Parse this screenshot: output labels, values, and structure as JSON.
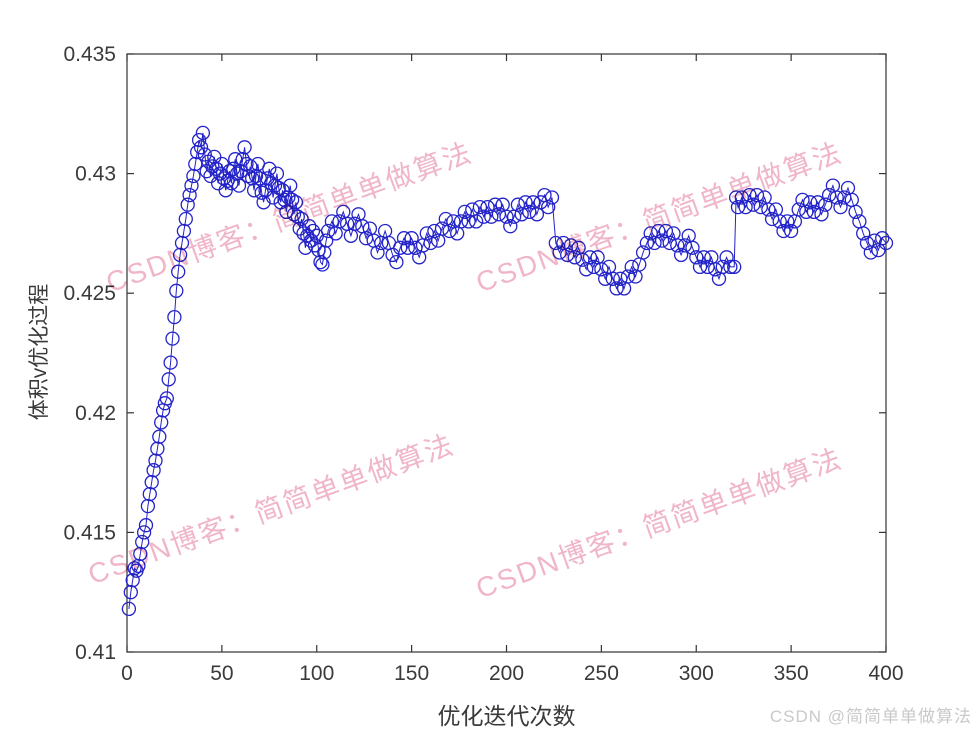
{
  "figure": {
    "xlabel": "优化迭代次数",
    "ylabel": "体积v优化过程"
  },
  "watermarks": {
    "tile_text": "CSDN博客：简简单单做算法",
    "tile_color": "#eea8c0",
    "credit_text": "CSDN @简简单单做算法",
    "credit_color": "#c9c9c9"
  },
  "chart_data": {
    "type": "line",
    "title": "",
    "xlabel": "优化迭代次数",
    "ylabel": "体积v优化过程",
    "xlim": [
      0,
      400
    ],
    "ylim": [
      0.41,
      0.435
    ],
    "xticks": [
      0,
      50,
      100,
      150,
      200,
      250,
      300,
      350,
      400
    ],
    "yticks": [
      0.41,
      0.415,
      0.42,
      0.425,
      0.43,
      0.435
    ],
    "ytick_labels": [
      "0.41",
      "0.415",
      "0.42",
      "0.425",
      "0.43",
      "0.435"
    ],
    "grid": false,
    "legend": null,
    "marker": "circle",
    "marker_radius": 6.5,
    "line_color": "#2323c9",
    "axis_color": "#333333",
    "series": [
      {
        "name": "体积v",
        "points": [
          [
            1,
            0.4118
          ],
          [
            2,
            0.4125
          ],
          [
            3,
            0.413
          ],
          [
            4,
            0.4135
          ],
          [
            5,
            0.4134
          ],
          [
            6,
            0.4136
          ],
          [
            7,
            0.4141
          ],
          [
            8,
            0.4146
          ],
          [
            9,
            0.415
          ],
          [
            10,
            0.4153
          ],
          [
            11,
            0.4161
          ],
          [
            12,
            0.4166
          ],
          [
            13,
            0.4171
          ],
          [
            14,
            0.4176
          ],
          [
            15,
            0.418
          ],
          [
            16,
            0.4185
          ],
          [
            17,
            0.419
          ],
          [
            18,
            0.4196
          ],
          [
            19,
            0.4201
          ],
          [
            20,
            0.4204
          ],
          [
            21,
            0.4206
          ],
          [
            22,
            0.4214
          ],
          [
            23,
            0.4221
          ],
          [
            24,
            0.4231
          ],
          [
            25,
            0.424
          ],
          [
            26,
            0.4251
          ],
          [
            27,
            0.4259
          ],
          [
            28,
            0.4266
          ],
          [
            29,
            0.4271
          ],
          [
            30,
            0.4276
          ],
          [
            31,
            0.4281
          ],
          [
            32,
            0.4287
          ],
          [
            33,
            0.4291
          ],
          [
            34,
            0.4295
          ],
          [
            35,
            0.4299
          ],
          [
            36,
            0.4304
          ],
          [
            37,
            0.4309
          ],
          [
            38,
            0.4314
          ],
          [
            39,
            0.4311
          ],
          [
            40,
            0.4317
          ],
          [
            41,
            0.4308
          ],
          [
            42,
            0.4301
          ],
          [
            43,
            0.4305
          ],
          [
            44,
            0.4299
          ],
          [
            45,
            0.4303
          ],
          [
            46,
            0.4307
          ],
          [
            47,
            0.4302
          ],
          [
            48,
            0.4296
          ],
          [
            49,
            0.43
          ],
          [
            50,
            0.4304
          ],
          [
            51,
            0.4298
          ],
          [
            52,
            0.4293
          ],
          [
            53,
            0.4297
          ],
          [
            54,
            0.4301
          ],
          [
            55,
            0.4296
          ],
          [
            56,
            0.4302
          ],
          [
            57,
            0.4306
          ],
          [
            58,
            0.43
          ],
          [
            59,
            0.4295
          ],
          [
            60,
            0.4301
          ],
          [
            61,
            0.4306
          ],
          [
            62,
            0.4311
          ],
          [
            63,
            0.4304
          ],
          [
            64,
            0.4299
          ],
          [
            65,
            0.4303
          ],
          [
            66,
            0.4298
          ],
          [
            67,
            0.4293
          ],
          [
            68,
            0.4299
          ],
          [
            69,
            0.4304
          ],
          [
            70,
            0.4298
          ],
          [
            71,
            0.4292
          ],
          [
            72,
            0.4288
          ],
          [
            73,
            0.4293
          ],
          [
            74,
            0.4298
          ],
          [
            75,
            0.4302
          ],
          [
            76,
            0.4296
          ],
          [
            77,
            0.429
          ],
          [
            78,
            0.4295
          ],
          [
            79,
            0.43
          ],
          [
            80,
            0.4294
          ],
          [
            81,
            0.4288
          ],
          [
            82,
            0.4293
          ],
          [
            83,
            0.4289
          ],
          [
            84,
            0.4284
          ],
          [
            85,
            0.429
          ],
          [
            86,
            0.4295
          ],
          [
            87,
            0.4289
          ],
          [
            88,
            0.4283
          ],
          [
            89,
            0.4288
          ],
          [
            90,
            0.4282
          ],
          [
            91,
            0.4277
          ],
          [
            92,
            0.4281
          ],
          [
            93,
            0.4275
          ],
          [
            94,
            0.4269
          ],
          [
            95,
            0.4274
          ],
          [
            96,
            0.4278
          ],
          [
            97,
            0.4272
          ],
          [
            98,
            0.4276
          ],
          [
            99,
            0.427
          ],
          [
            100,
            0.4274
          ],
          [
            101,
            0.4268
          ],
          [
            102,
            0.4263
          ],
          [
            103,
            0.4262
          ],
          [
            104,
            0.4267
          ],
          [
            105,
            0.4272
          ],
          [
            106,
            0.4276
          ],
          [
            108,
            0.428
          ],
          [
            110,
            0.4275
          ],
          [
            112,
            0.428
          ],
          [
            114,
            0.4284
          ],
          [
            116,
            0.4279
          ],
          [
            118,
            0.4274
          ],
          [
            120,
            0.4279
          ],
          [
            122,
            0.4283
          ],
          [
            124,
            0.4278
          ],
          [
            126,
            0.4273
          ],
          [
            128,
            0.4277
          ],
          [
            130,
            0.4272
          ],
          [
            132,
            0.4267
          ],
          [
            134,
            0.4271
          ],
          [
            136,
            0.4276
          ],
          [
            138,
            0.4271
          ],
          [
            140,
            0.4266
          ],
          [
            142,
            0.4263
          ],
          [
            144,
            0.4269
          ],
          [
            146,
            0.4273
          ],
          [
            148,
            0.4269
          ],
          [
            150,
            0.4273
          ],
          [
            152,
            0.4269
          ],
          [
            154,
            0.4265
          ],
          [
            156,
            0.427
          ],
          [
            158,
            0.4275
          ],
          [
            160,
            0.4271
          ],
          [
            162,
            0.4276
          ],
          [
            164,
            0.4272
          ],
          [
            166,
            0.4277
          ],
          [
            168,
            0.4281
          ],
          [
            170,
            0.4276
          ],
          [
            172,
            0.428
          ],
          [
            174,
            0.4275
          ],
          [
            176,
            0.428
          ],
          [
            178,
            0.4284
          ],
          [
            180,
            0.428
          ],
          [
            182,
            0.4285
          ],
          [
            184,
            0.428
          ],
          [
            186,
            0.4286
          ],
          [
            188,
            0.4282
          ],
          [
            190,
            0.4286
          ],
          [
            192,
            0.4282
          ],
          [
            194,
            0.4287
          ],
          [
            196,
            0.4283
          ],
          [
            198,
            0.4287
          ],
          [
            200,
            0.4282
          ],
          [
            202,
            0.4278
          ],
          [
            204,
            0.4282
          ],
          [
            206,
            0.4287
          ],
          [
            208,
            0.4283
          ],
          [
            210,
            0.4288
          ],
          [
            212,
            0.4284
          ],
          [
            214,
            0.4288
          ],
          [
            216,
            0.4283
          ],
          [
            218,
            0.4288
          ],
          [
            220,
            0.4291
          ],
          [
            222,
            0.4286
          ],
          [
            224,
            0.429
          ],
          [
            226,
            0.4271
          ],
          [
            228,
            0.4267
          ],
          [
            230,
            0.4271
          ],
          [
            232,
            0.4266
          ],
          [
            234,
            0.427
          ],
          [
            236,
            0.4265
          ],
          [
            238,
            0.4269
          ],
          [
            240,
            0.4264
          ],
          [
            242,
            0.426
          ],
          [
            244,
            0.4265
          ],
          [
            246,
            0.4261
          ],
          [
            248,
            0.4265
          ],
          [
            250,
            0.426
          ],
          [
            252,
            0.4256
          ],
          [
            254,
            0.4261
          ],
          [
            256,
            0.4256
          ],
          [
            258,
            0.4252
          ],
          [
            260,
            0.4256
          ],
          [
            262,
            0.4252
          ],
          [
            264,
            0.4257
          ],
          [
            266,
            0.4261
          ],
          [
            268,
            0.4257
          ],
          [
            270,
            0.4262
          ],
          [
            272,
            0.4267
          ],
          [
            274,
            0.4271
          ],
          [
            276,
            0.4275
          ],
          [
            278,
            0.4271
          ],
          [
            280,
            0.4276
          ],
          [
            282,
            0.4272
          ],
          [
            284,
            0.4276
          ],
          [
            286,
            0.4271
          ],
          [
            288,
            0.4275
          ],
          [
            290,
            0.427
          ],
          [
            292,
            0.4266
          ],
          [
            294,
            0.427
          ],
          [
            296,
            0.4274
          ],
          [
            298,
            0.4269
          ],
          [
            300,
            0.4265
          ],
          [
            302,
            0.4261
          ],
          [
            304,
            0.4265
          ],
          [
            306,
            0.4261
          ],
          [
            308,
            0.4265
          ],
          [
            310,
            0.426
          ],
          [
            312,
            0.4256
          ],
          [
            314,
            0.4261
          ],
          [
            316,
            0.4265
          ],
          [
            318,
            0.4261
          ],
          [
            320,
            0.4261
          ],
          [
            321,
            0.429
          ],
          [
            322,
            0.4286
          ],
          [
            324,
            0.429
          ],
          [
            326,
            0.4286
          ],
          [
            328,
            0.4291
          ],
          [
            330,
            0.4287
          ],
          [
            332,
            0.4291
          ],
          [
            334,
            0.4286
          ],
          [
            336,
            0.429
          ],
          [
            338,
            0.4285
          ],
          [
            340,
            0.4281
          ],
          [
            342,
            0.4285
          ],
          [
            344,
            0.428
          ],
          [
            346,
            0.4276
          ],
          [
            348,
            0.428
          ],
          [
            350,
            0.4276
          ],
          [
            352,
            0.428
          ],
          [
            354,
            0.4285
          ],
          [
            356,
            0.4289
          ],
          [
            358,
            0.4284
          ],
          [
            360,
            0.4288
          ],
          [
            362,
            0.4284
          ],
          [
            364,
            0.4288
          ],
          [
            366,
            0.4283
          ],
          [
            368,
            0.4287
          ],
          [
            370,
            0.4291
          ],
          [
            372,
            0.4295
          ],
          [
            374,
            0.429
          ],
          [
            376,
            0.4286
          ],
          [
            378,
            0.429
          ],
          [
            380,
            0.4294
          ],
          [
            382,
            0.4289
          ],
          [
            384,
            0.4284
          ],
          [
            386,
            0.428
          ],
          [
            388,
            0.4275
          ],
          [
            390,
            0.4271
          ],
          [
            392,
            0.4267
          ],
          [
            394,
            0.4272
          ],
          [
            396,
            0.4268
          ],
          [
            398,
            0.4273
          ],
          [
            400,
            0.4271
          ]
        ]
      }
    ]
  }
}
